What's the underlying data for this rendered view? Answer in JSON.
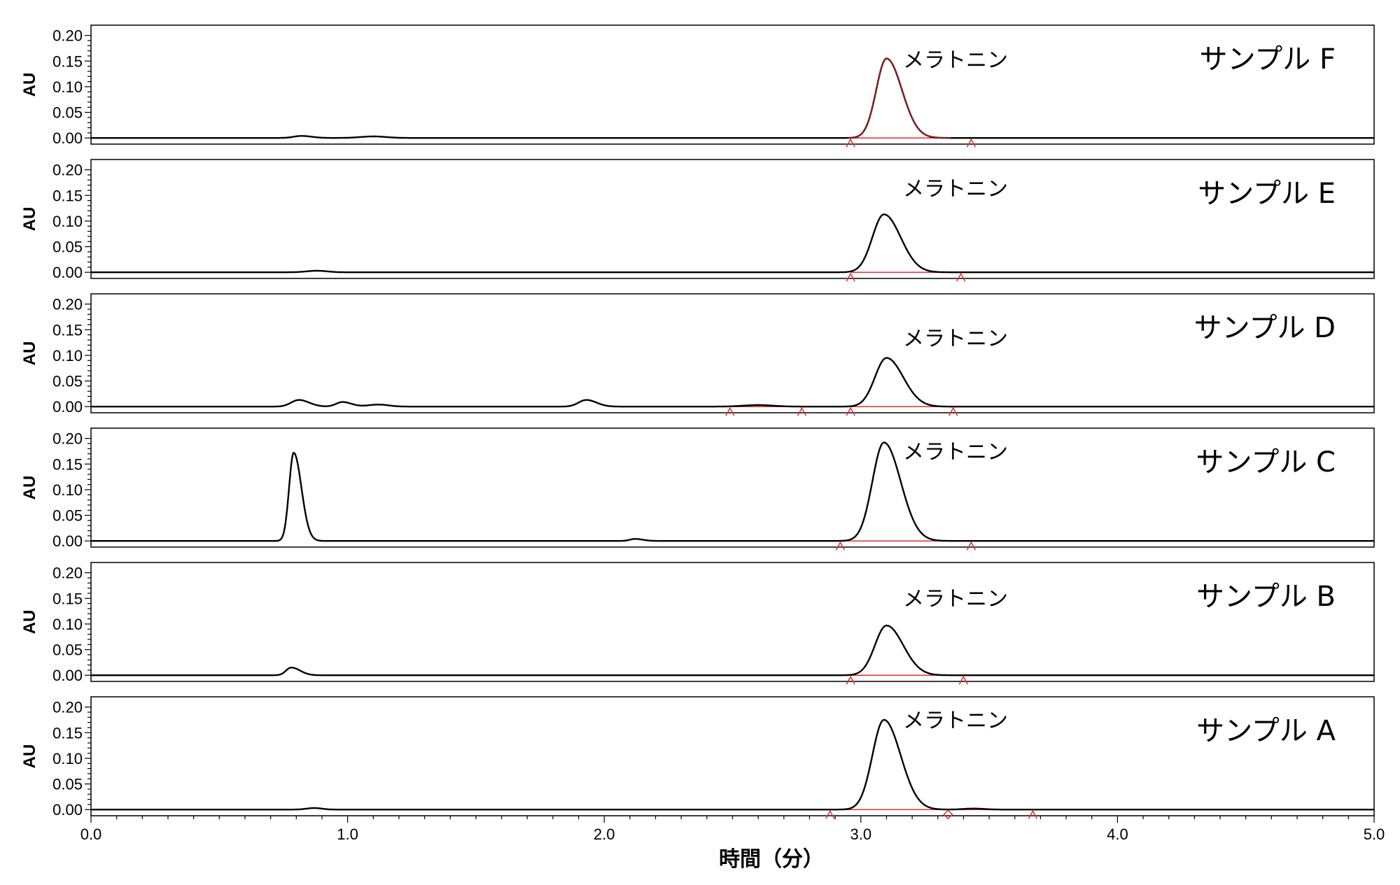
{
  "chart_data": {
    "type": "line",
    "xlabel": "時間（分）",
    "x_ticks": [
      "0.0",
      "1.0",
      "2.0",
      "3.0",
      "4.0",
      "5.0"
    ],
    "xlim": [
      0,
      5
    ],
    "grid": false,
    "panels": [
      {
        "sample": "サンプル F",
        "ylabel": "AU",
        "y_ticks": [
          "0.00",
          "0.05",
          "0.10",
          "0.15",
          "0.20"
        ],
        "ylim": [
          -0.012,
          0.22
        ],
        "peak_label": "メラトニン",
        "peak_color": "#b22222",
        "peaks": [
          {
            "t": 3.1,
            "h": 0.155,
            "sl": 0.04,
            "sr": 0.06
          },
          {
            "t": 0.82,
            "h": 0.004,
            "sl": 0.03,
            "sr": 0.04
          },
          {
            "t": 1.1,
            "h": 0.003,
            "sl": 0.05,
            "sr": 0.05
          }
        ],
        "baseline": [
          2.96,
          3.43
        ],
        "markers": [
          {
            "t": 2.96,
            "shape": "triangle"
          },
          {
            "t": 3.43,
            "shape": "triangle"
          }
        ]
      },
      {
        "sample": "サンプル E",
        "ylabel": "AU",
        "y_ticks": [
          "0.00",
          "0.05",
          "0.10",
          "0.15",
          "0.20"
        ],
        "ylim": [
          -0.012,
          0.22
        ],
        "peak_label": "メラトニン",
        "peak_color": "#000000",
        "peaks": [
          {
            "t": 3.09,
            "h": 0.113,
            "sl": 0.045,
            "sr": 0.065
          },
          {
            "t": 0.88,
            "h": 0.003,
            "sl": 0.04,
            "sr": 0.04
          }
        ],
        "baseline": [
          2.96,
          3.39
        ],
        "markers": [
          {
            "t": 2.96,
            "shape": "triangle"
          },
          {
            "t": 3.39,
            "shape": "triangle"
          }
        ]
      },
      {
        "sample": "サンプル D",
        "ylabel": "AU",
        "y_ticks": [
          "0.00",
          "0.05",
          "0.10",
          "0.15",
          "0.20"
        ],
        "ylim": [
          -0.012,
          0.22
        ],
        "peak_label": "メラトニン",
        "peak_color": "#000000",
        "peaks": [
          {
            "t": 3.1,
            "h": 0.095,
            "sl": 0.045,
            "sr": 0.065
          },
          {
            "t": 0.81,
            "h": 0.013,
            "sl": 0.03,
            "sr": 0.04
          },
          {
            "t": 0.98,
            "h": 0.009,
            "sl": 0.025,
            "sr": 0.035
          },
          {
            "t": 1.12,
            "h": 0.004,
            "sl": 0.04,
            "sr": 0.04
          },
          {
            "t": 1.93,
            "h": 0.013,
            "sl": 0.03,
            "sr": 0.04
          },
          {
            "t": 2.6,
            "h": 0.003,
            "sl": 0.06,
            "sr": 0.06
          }
        ],
        "baseline": [
          2.49,
          3.36
        ],
        "markers": [
          {
            "t": 2.49,
            "shape": "triangle"
          },
          {
            "t": 2.77,
            "shape": "triangle"
          },
          {
            "t": 2.96,
            "shape": "triangle"
          },
          {
            "t": 3.36,
            "shape": "triangle"
          }
        ]
      },
      {
        "sample": "サンプル C",
        "ylabel": "AU",
        "y_ticks": [
          "0.00",
          "0.05",
          "0.10",
          "0.15",
          "0.20"
        ],
        "ylim": [
          -0.012,
          0.22
        ],
        "peak_label": "メラトニン",
        "peak_color": "#000000",
        "peaks": [
          {
            "t": 3.09,
            "h": 0.192,
            "sl": 0.045,
            "sr": 0.065
          },
          {
            "t": 0.79,
            "h": 0.172,
            "sl": 0.018,
            "sr": 0.03
          },
          {
            "t": 2.12,
            "h": 0.004,
            "sl": 0.02,
            "sr": 0.03
          }
        ],
        "baseline": [
          2.92,
          3.43
        ],
        "markers": [
          {
            "t": 2.92,
            "shape": "triangle"
          },
          {
            "t": 3.43,
            "shape": "triangle"
          }
        ]
      },
      {
        "sample": "サンプル B",
        "ylabel": "AU",
        "y_ticks": [
          "0.00",
          "0.05",
          "0.10",
          "0.15",
          "0.20"
        ],
        "ylim": [
          -0.012,
          0.22
        ],
        "peak_label": "メラトニン",
        "peak_color": "#000000",
        "peaks": [
          {
            "t": 3.1,
            "h": 0.097,
            "sl": 0.045,
            "sr": 0.065
          },
          {
            "t": 0.78,
            "h": 0.015,
            "sl": 0.02,
            "sr": 0.035
          }
        ],
        "baseline": [
          2.96,
          3.4
        ],
        "markers": [
          {
            "t": 2.96,
            "shape": "triangle"
          },
          {
            "t": 3.4,
            "shape": "triangle"
          }
        ]
      },
      {
        "sample": "サンプル A",
        "ylabel": "AU",
        "y_ticks": [
          "0.00",
          "0.05",
          "0.10",
          "0.15",
          "0.20"
        ],
        "ylim": [
          -0.012,
          0.22
        ],
        "peak_label": "メラトニン",
        "peak_color": "#000000",
        "peaks": [
          {
            "t": 3.09,
            "h": 0.175,
            "sl": 0.045,
            "sr": 0.065
          },
          {
            "t": 0.87,
            "h": 0.003,
            "sl": 0.03,
            "sr": 0.03
          },
          {
            "t": 3.44,
            "h": 0.002,
            "sl": 0.04,
            "sr": 0.04
          }
        ],
        "baseline": [
          2.88,
          3.67
        ],
        "markers": [
          {
            "t": 2.88,
            "shape": "triangle"
          },
          {
            "t": 3.34,
            "shape": "diamond"
          },
          {
            "t": 3.67,
            "shape": "triangle"
          }
        ]
      }
    ]
  }
}
